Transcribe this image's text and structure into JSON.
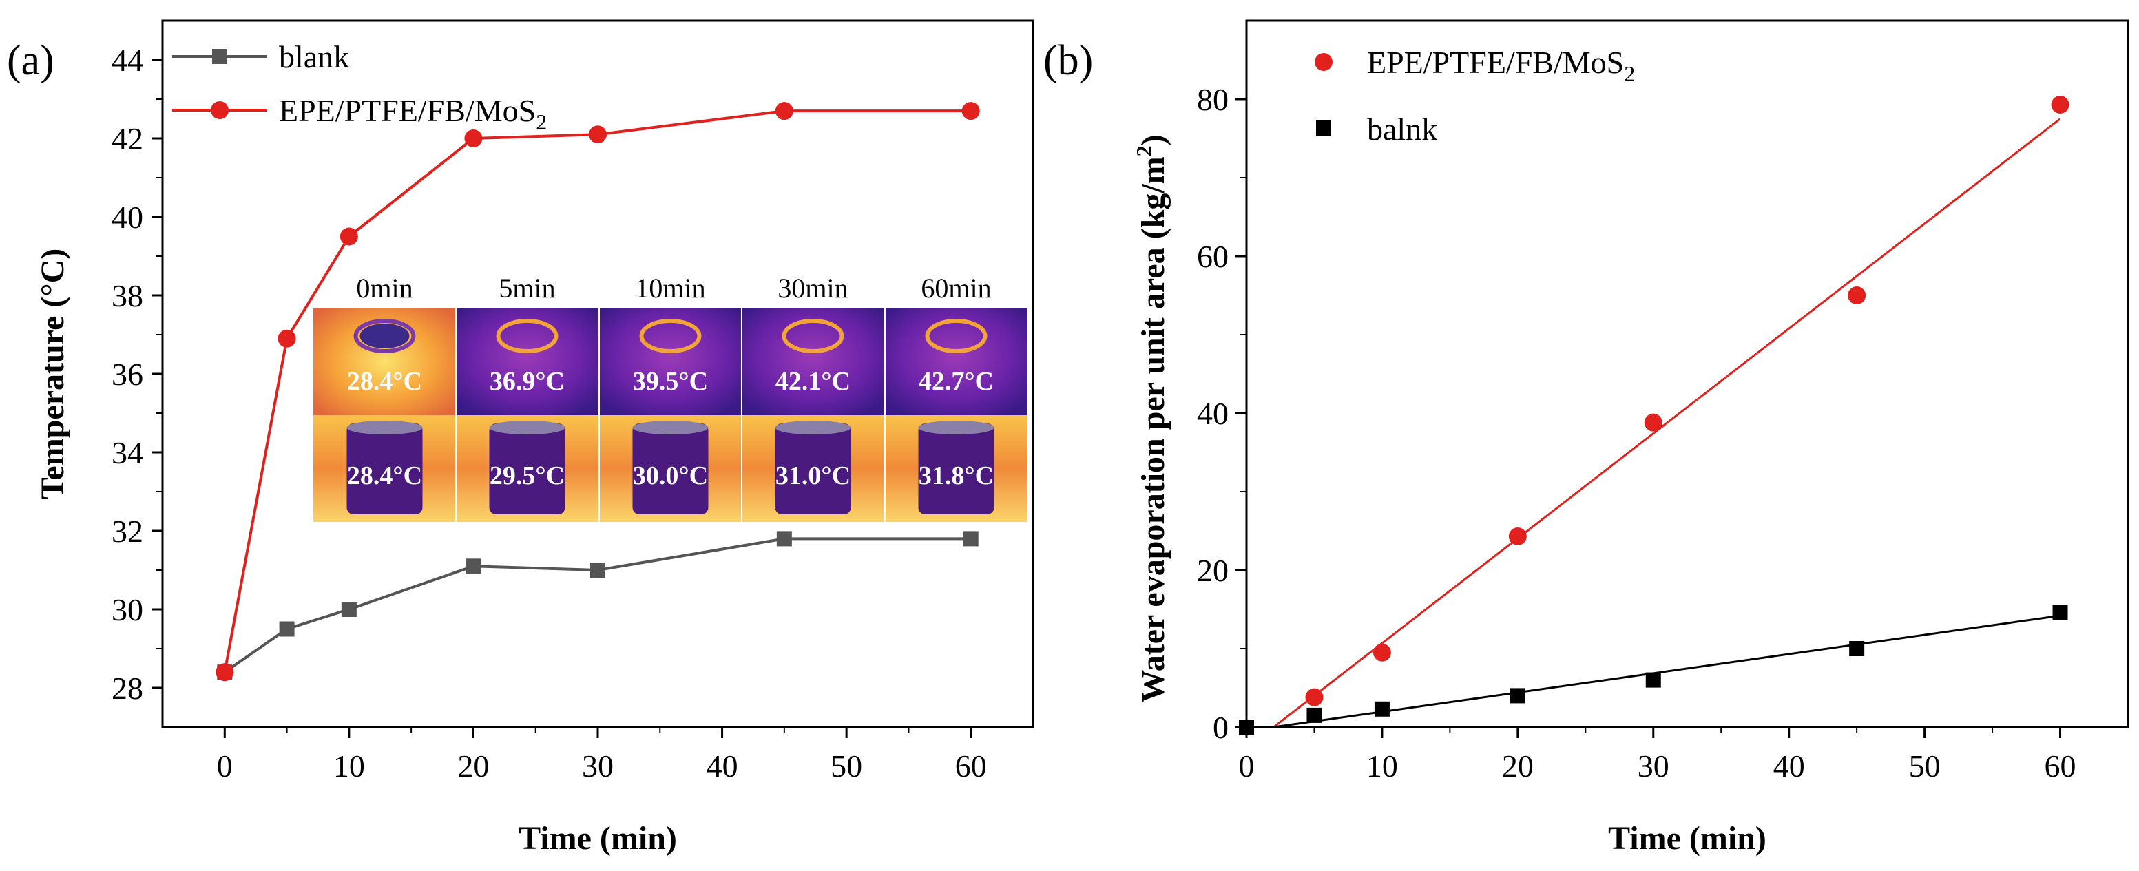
{
  "chart_data": [
    {
      "panel": "(a)",
      "type": "line",
      "title": "",
      "xlabel": "Time (min)",
      "ylabel": "Temperature (°C)",
      "xlim": [
        -5,
        65
      ],
      "ylim": [
        27,
        45
      ],
      "xticks": [
        0,
        10,
        20,
        30,
        40,
        50,
        60
      ],
      "yticks": [
        28,
        30,
        32,
        34,
        36,
        38,
        40,
        42,
        44
      ],
      "legend_position": "top-left",
      "series": [
        {
          "name": "blank",
          "marker": "square",
          "color": "#555555",
          "x": [
            0,
            5,
            10,
            20,
            30,
            45,
            60
          ],
          "y": [
            28.4,
            29.5,
            30.0,
            31.1,
            31.0,
            31.8,
            31.8
          ]
        },
        {
          "name": "EPE/PTFE/FB/MoS2",
          "name_base": "EPE/PTFE/FB/MoS",
          "name_sub": "2",
          "marker": "circle",
          "color": "#e0211d",
          "x": [
            0,
            5,
            10,
            20,
            30,
            45,
            60
          ],
          "y": [
            28.4,
            36.9,
            39.5,
            42.0,
            42.1,
            42.7,
            42.7
          ]
        }
      ],
      "inset": {
        "time_labels": [
          "0min",
          "5min",
          "10min",
          "30min",
          "60min"
        ],
        "top_row_temps": [
          "28.4°C",
          "36.9°C",
          "39.5°C",
          "42.1°C",
          "42.7°C"
        ],
        "bottom_row_temps": [
          "28.4°C",
          "29.5°C",
          "30.0°C",
          "31.0°C",
          "31.8°C"
        ]
      }
    },
    {
      "panel": "(b)",
      "type": "scatter",
      "title": "",
      "xlabel": "Time (min)",
      "ylabel": "Water evaporation per unit area (kg/m2)",
      "ylabel_base": "Water evaporation per unit area (kg/m",
      "ylabel_sup": "2",
      "ylabel_end": ")",
      "xlim": [
        0,
        65
      ],
      "ylim": [
        0,
        90
      ],
      "xticks": [
        0,
        10,
        20,
        30,
        40,
        50,
        60
      ],
      "yticks": [
        0,
        20,
        40,
        60,
        80
      ],
      "legend_position": "top-left",
      "series": [
        {
          "name": "EPE/PTFE/FB/MoS2",
          "name_base": "EPE/PTFE/FB/MoS",
          "name_sub": "2",
          "marker": "circle",
          "color": "#e0211d",
          "x": [
            5,
            10,
            20,
            30,
            45,
            60
          ],
          "y": [
            3.8,
            9.5,
            24.3,
            38.8,
            55.0,
            79.3
          ],
          "fit_line": {
            "x": [
              2,
              60
            ],
            "y": [
              0,
              77.5
            ]
          }
        },
        {
          "name": "balnk",
          "marker": "square",
          "color": "#000000",
          "x": [
            0,
            5,
            10,
            20,
            30,
            45,
            60
          ],
          "y": [
            0,
            1.5,
            2.3,
            4.0,
            6.0,
            10.0,
            14.6
          ],
          "fit_line": {
            "x": [
              2,
              60
            ],
            "y": [
              0,
              14.2
            ]
          }
        }
      ]
    }
  ]
}
